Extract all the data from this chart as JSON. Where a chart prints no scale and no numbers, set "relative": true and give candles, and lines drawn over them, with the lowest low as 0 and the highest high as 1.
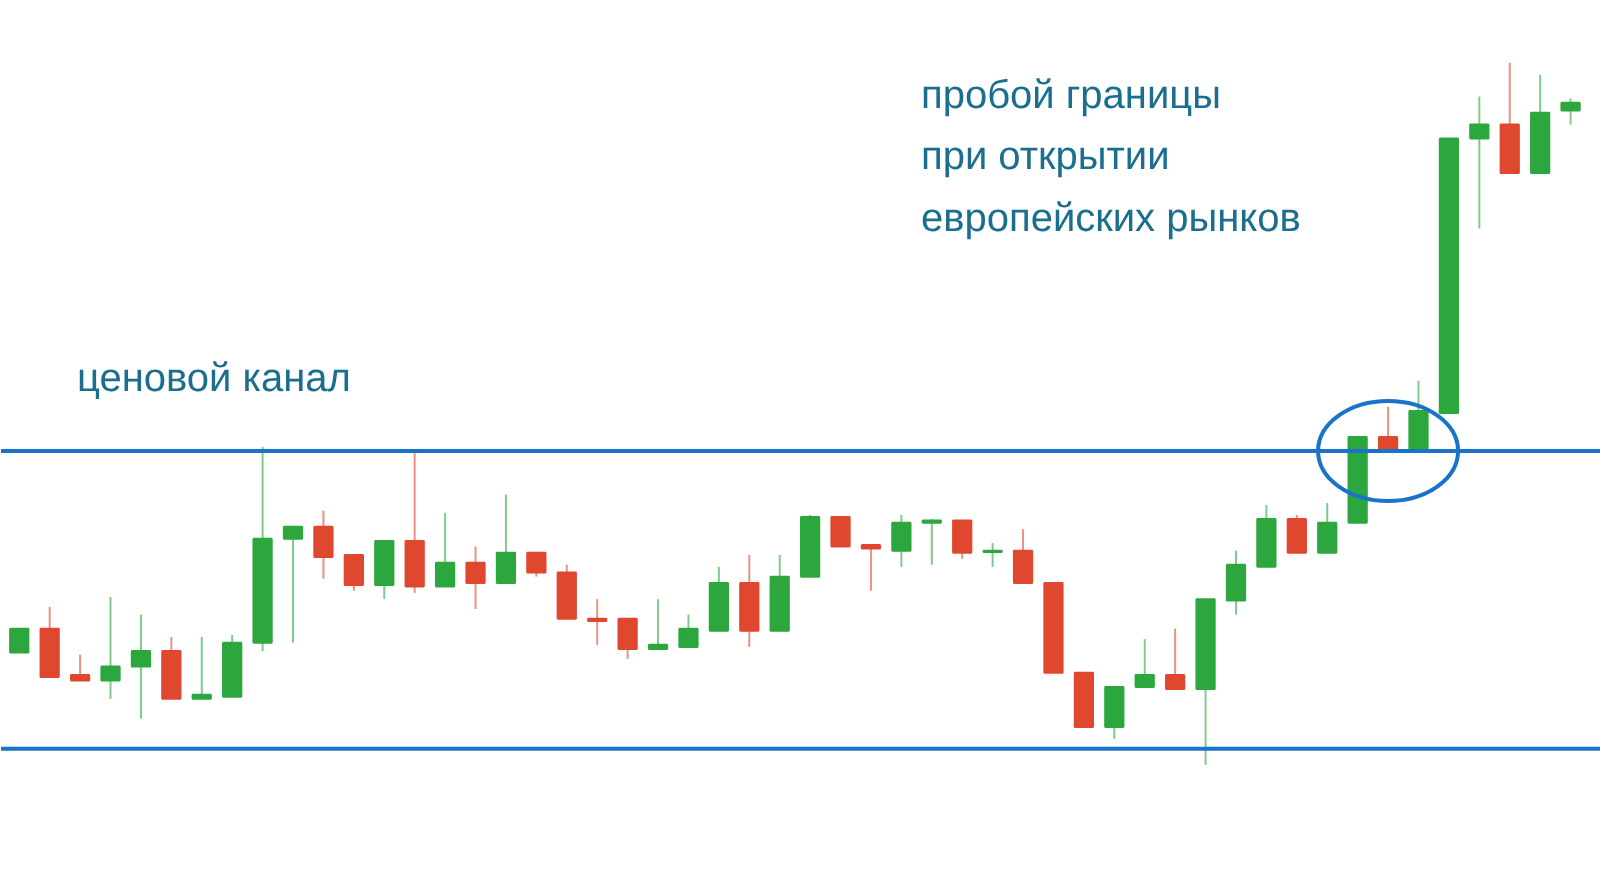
{
  "chart_data": {
    "type": "candlestick",
    "relative": true,
    "categories": [
      null,
      null,
      null,
      null,
      null,
      null,
      null,
      null,
      null,
      null,
      null,
      null,
      null,
      null,
      null,
      null,
      null,
      null,
      null,
      null,
      null,
      null,
      null,
      null,
      null,
      null,
      null,
      null,
      null,
      null,
      null,
      null,
      null,
      null,
      null,
      null,
      null,
      null,
      null,
      null,
      null,
      null,
      null,
      null,
      null,
      null,
      null,
      null,
      null,
      null,
      null,
      null
    ],
    "ohlc": [
      [
        0.16,
        0.194,
        0.16,
        0.194
      ],
      [
        0.194,
        0.225,
        0.125,
        0.125
      ],
      [
        0.128,
        0.157,
        0.12,
        0.12
      ],
      [
        0.12,
        0.239,
        0.094,
        0.14
      ],
      [
        0.14,
        0.214,
        0.066,
        0.162
      ],
      [
        0.162,
        0.182,
        0.094,
        0.094
      ],
      [
        0.094,
        0.182,
        0.094,
        0.1
      ],
      [
        0.097,
        0.185,
        0.097,
        0.174
      ],
      [
        0.174,
        0.453,
        0.162,
        0.322
      ],
      [
        0.322,
        0.339,
        0.174,
        0.339
      ],
      [
        0.339,
        0.362,
        0.265,
        0.296
      ],
      [
        0.299,
        0.299,
        0.248,
        0.256
      ],
      [
        0.256,
        0.319,
        0.236,
        0.319
      ],
      [
        0.319,
        0.444,
        0.245,
        0.254
      ],
      [
        0.254,
        0.359,
        0.254,
        0.288
      ],
      [
        0.288,
        0.311,
        0.222,
        0.259
      ],
      [
        0.259,
        0.385,
        0.259,
        0.302
      ],
      [
        0.302,
        0.302,
        0.268,
        0.274
      ],
      [
        0.274,
        0.285,
        0.208,
        0.208
      ],
      [
        0.208,
        0.236,
        0.171,
        0.205
      ],
      [
        0.208,
        0.208,
        0.151,
        0.165
      ],
      [
        0.165,
        0.236,
        0.165,
        0.171
      ],
      [
        0.168,
        0.214,
        0.168,
        0.194
      ],
      [
        0.191,
        0.282,
        0.191,
        0.259
      ],
      [
        0.259,
        0.299,
        0.168,
        0.191
      ],
      [
        0.191,
        0.299,
        0.191,
        0.268
      ],
      [
        0.268,
        0.356,
        0.268,
        0.353
      ],
      [
        0.353,
        0.353,
        0.311,
        0.311
      ],
      [
        0.313,
        0.313,
        0.248,
        0.308
      ],
      [
        0.305,
        0.356,
        0.282,
        0.345
      ],
      [
        0.345,
        0.35,
        0.285,
        0.348
      ],
      [
        0.348,
        0.348,
        0.293,
        0.302
      ],
      [
        0.303,
        0.316,
        0.282,
        0.305
      ],
      [
        0.305,
        0.336,
        0.259,
        0.259
      ],
      [
        0.259,
        0.259,
        0.131,
        0.131
      ],
      [
        0.131,
        0.131,
        0.054,
        0.054
      ],
      [
        0.054,
        0.111,
        0.037,
        0.111
      ],
      [
        0.111,
        0.179,
        0.111,
        0.128
      ],
      [
        0.128,
        0.194,
        0.108,
        0.108
      ],
      [
        0.108,
        0.236,
        0,
        0.236
      ],
      [
        0.234,
        0.305,
        0.214,
        0.285
      ],
      [
        0.282,
        0.37,
        0.282,
        0.35
      ],
      [
        0.35,
        0.356,
        0.302,
        0.302
      ],
      [
        0.302,
        0.373,
        0.302,
        0.345
      ],
      [
        0.345,
        0.467,
        0.345,
        0.467
      ],
      [
        0.467,
        0.51,
        0.45,
        0.45
      ],
      [
        0.45,
        0.547,
        0.45,
        0.504
      ],
      [
        0.501,
        0.892,
        0.501,
        0.892
      ],
      [
        0.892,
        0.952,
        0.764,
        0.912
      ],
      [
        0.912,
        1,
        0.843,
        0.843
      ],
      [
        0.843,
        0.983,
        0.843,
        0.929
      ],
      [
        0.932,
        0.949,
        0.912,
        0.943
      ]
    ],
    "colors": [
      "#2ca73e",
      "#e0472f",
      "#e0472f",
      "#2ca73e",
      "#2ca73e",
      "#e0472f",
      "#2ca73e",
      "#2ca73e",
      "#2ca73e",
      "#2ca73e",
      "#e0472f",
      "#e0472f",
      "#2ca73e",
      "#e0472f",
      "#2ca73e",
      "#e0472f",
      "#2ca73e",
      "#e0472f",
      "#e0472f",
      "#e0472f",
      "#e0472f",
      "#2ca73e",
      "#2ca73e",
      "#2ca73e",
      "#e0472f",
      "#2ca73e",
      "#2ca73e",
      "#e0472f",
      "#e0472f",
      "#2ca73e",
      "#2ca73e",
      "#e0472f",
      "#2ca73e",
      "#e0472f",
      "#e0472f",
      "#e0472f",
      "#2ca73e",
      "#2ca73e",
      "#e0472f",
      "#2ca73e",
      "#2ca73e",
      "#2ca73e",
      "#e0472f",
      "#2ca73e",
      "#2ca73e",
      "#e0472f",
      "#2ca73e",
      "#2ca73e",
      "#2ca73e",
      "#e0472f",
      "#2ca73e",
      "#2ca73e"
    ],
    "ref_lines": [
      {
        "axis": "y",
        "value": 0.447,
        "color": "#1a73c9"
      },
      {
        "axis": "y",
        "value": 0.023,
        "color": "#1a73c9"
      }
    ],
    "annotations": [
      "ценовой канал",
      "пробой границы\nпри открытии\nевропейских рынков"
    ]
  }
}
